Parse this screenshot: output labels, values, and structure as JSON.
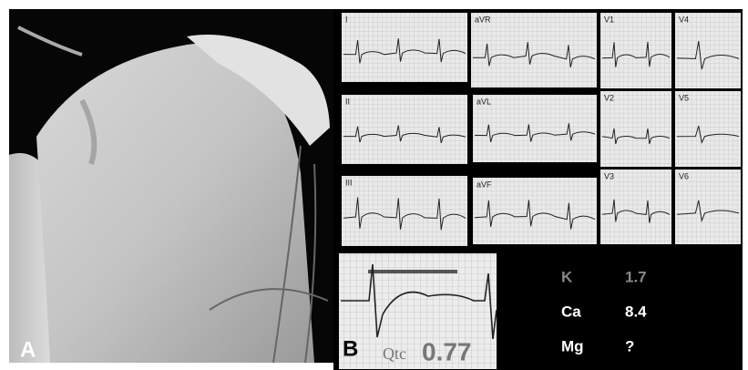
{
  "panels": {
    "a": {
      "label": "A"
    },
    "b": {
      "label": "B",
      "leads": [
        "I",
        "aVR",
        "V1",
        "V4",
        "II",
        "aVL",
        "V2",
        "V5",
        "III",
        "aVF",
        "V3",
        "V6"
      ],
      "qtc": {
        "label": "Qtc",
        "value": 0.77
      },
      "labs": [
        {
          "name": "K",
          "value": 1.7
        },
        {
          "name": "Ca",
          "value": 8.4
        },
        {
          "name": "Mg",
          "value": "?"
        }
      ]
    }
  }
}
